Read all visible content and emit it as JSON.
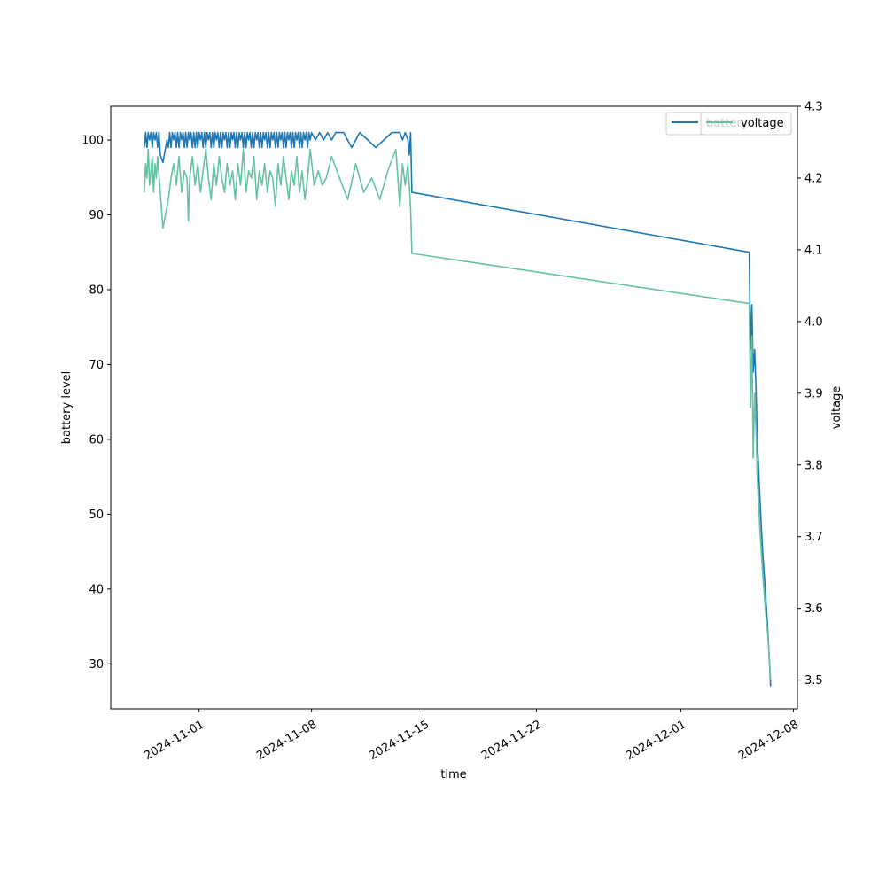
{
  "chart_data": {
    "type": "line",
    "title": "",
    "xlabel": "time",
    "ylabel": "battery level",
    "y2label": "voltage",
    "x_ticks": [
      "2024-11-01",
      "2024-11-08",
      "2024-11-15",
      "2024-11-22",
      "2024-12-01",
      "2024-12-08"
    ],
    "xlim": [
      "2024-10-26T12:00",
      "2024-12-08T06:00"
    ],
    "ylim": [
      24,
      104.5
    ],
    "y_ticks": [
      30,
      40,
      50,
      60,
      70,
      80,
      90,
      100
    ],
    "y2lim": [
      3.46,
      4.3
    ],
    "y2_ticks": [
      "3.5",
      "3.6",
      "3.7",
      "3.8",
      "3.9",
      "4.0",
      "4.1",
      "4.2",
      "4.3"
    ],
    "grid": false,
    "colors": {
      "battery": "#1f77b4",
      "voltage": "#66c2a5",
      "axis": "#000000",
      "legend_border": "#cccccc"
    },
    "legends": [
      {
        "labels": [
          "battery"
        ],
        "placement": "top-right"
      },
      {
        "labels": [
          "voltage"
        ],
        "placement": "top-right"
      }
    ],
    "series": [
      {
        "name": "battery",
        "axis": "left",
        "points": [
          [
            "2024-10-28T14:00",
            99
          ],
          [
            "2024-10-28T16:00",
            101
          ],
          [
            "2024-10-28T18:00",
            99
          ],
          [
            "2024-10-28T20:00",
            101
          ],
          [
            "2024-10-28T22:00",
            100
          ],
          [
            "2024-10-29T00:00",
            101
          ],
          [
            "2024-10-29T02:00",
            99
          ],
          [
            "2024-10-29T04:00",
            101
          ],
          [
            "2024-10-29T06:00",
            100
          ],
          [
            "2024-10-29T08:00",
            101
          ],
          [
            "2024-10-29T10:00",
            99
          ],
          [
            "2024-10-29T12:00",
            101
          ],
          [
            "2024-10-29T14:00",
            98
          ],
          [
            "2024-10-29T18:00",
            97
          ],
          [
            "2024-10-29T22:00",
            99
          ],
          [
            "2024-10-30T00:00",
            100
          ],
          [
            "2024-10-30T02:00",
            99
          ],
          [
            "2024-10-30T04:00",
            101
          ],
          [
            "2024-10-30T06:00",
            99
          ],
          [
            "2024-10-30T08:00",
            101
          ],
          [
            "2024-10-30T10:00",
            100
          ],
          [
            "2024-10-30T12:00",
            101
          ],
          [
            "2024-10-30T14:00",
            99
          ],
          [
            "2024-10-30T16:00",
            101
          ],
          [
            "2024-10-30T18:00",
            99
          ],
          [
            "2024-10-30T20:00",
            101
          ],
          [
            "2024-10-30T22:00",
            100
          ],
          [
            "2024-10-31T00:00",
            101
          ],
          [
            "2024-10-31T02:00",
            99
          ],
          [
            "2024-10-31T04:00",
            101
          ],
          [
            "2024-10-31T06:00",
            99
          ],
          [
            "2024-10-31T08:00",
            101
          ],
          [
            "2024-10-31T10:00",
            100
          ],
          [
            "2024-10-31T12:00",
            101
          ],
          [
            "2024-10-31T14:00",
            99
          ],
          [
            "2024-10-31T16:00",
            101
          ],
          [
            "2024-10-31T18:00",
            99
          ],
          [
            "2024-10-31T20:00",
            101
          ],
          [
            "2024-10-31T22:00",
            99
          ],
          [
            "2024-11-01T00:00",
            101
          ],
          [
            "2024-11-01T02:00",
            100
          ],
          [
            "2024-11-01T04:00",
            101
          ],
          [
            "2024-11-01T06:00",
            99
          ],
          [
            "2024-11-01T08:00",
            101
          ],
          [
            "2024-11-01T10:00",
            99
          ],
          [
            "2024-11-01T12:00",
            101
          ],
          [
            "2024-11-01T14:00",
            100
          ],
          [
            "2024-11-01T16:00",
            101
          ],
          [
            "2024-11-01T18:00",
            99
          ],
          [
            "2024-11-01T20:00",
            101
          ],
          [
            "2024-11-01T22:00",
            99
          ],
          [
            "2024-11-02T00:00",
            101
          ],
          [
            "2024-11-02T02:00",
            100
          ],
          [
            "2024-11-02T04:00",
            101
          ],
          [
            "2024-11-02T06:00",
            99
          ],
          [
            "2024-11-02T08:00",
            101
          ],
          [
            "2024-11-02T10:00",
            99
          ],
          [
            "2024-11-02T12:00",
            101
          ],
          [
            "2024-11-02T14:00",
            100
          ],
          [
            "2024-11-02T16:00",
            101
          ],
          [
            "2024-11-02T18:00",
            99
          ],
          [
            "2024-11-02T20:00",
            101
          ],
          [
            "2024-11-02T22:00",
            99
          ],
          [
            "2024-11-03T00:00",
            101
          ],
          [
            "2024-11-03T02:00",
            100
          ],
          [
            "2024-11-03T04:00",
            101
          ],
          [
            "2024-11-03T06:00",
            99
          ],
          [
            "2024-11-03T08:00",
            101
          ],
          [
            "2024-11-03T10:00",
            99
          ],
          [
            "2024-11-03T12:00",
            101
          ],
          [
            "2024-11-03T14:00",
            100
          ],
          [
            "2024-11-03T16:00",
            101
          ],
          [
            "2024-11-03T18:00",
            99
          ],
          [
            "2024-11-03T20:00",
            101
          ],
          [
            "2024-11-03T22:00",
            99
          ],
          [
            "2024-11-04T00:00",
            101
          ],
          [
            "2024-11-04T02:00",
            100
          ],
          [
            "2024-11-04T04:00",
            101
          ],
          [
            "2024-11-04T06:00",
            99
          ],
          [
            "2024-11-04T08:00",
            101
          ],
          [
            "2024-11-04T10:00",
            99
          ],
          [
            "2024-11-04T12:00",
            101
          ],
          [
            "2024-11-04T14:00",
            100
          ],
          [
            "2024-11-04T16:00",
            101
          ],
          [
            "2024-11-04T18:00",
            99
          ],
          [
            "2024-11-04T20:00",
            101
          ],
          [
            "2024-11-04T22:00",
            99
          ],
          [
            "2024-11-05T00:00",
            101
          ],
          [
            "2024-11-05T02:00",
            100
          ],
          [
            "2024-11-05T04:00",
            101
          ],
          [
            "2024-11-05T06:00",
            99
          ],
          [
            "2024-11-05T08:00",
            101
          ],
          [
            "2024-11-05T10:00",
            99
          ],
          [
            "2024-11-05T12:00",
            101
          ],
          [
            "2024-11-05T14:00",
            100
          ],
          [
            "2024-11-05T16:00",
            101
          ],
          [
            "2024-11-05T18:00",
            99
          ],
          [
            "2024-11-05T20:00",
            101
          ],
          [
            "2024-11-05T22:00",
            99
          ],
          [
            "2024-11-06T00:00",
            101
          ],
          [
            "2024-11-06T02:00",
            100
          ],
          [
            "2024-11-06T04:00",
            101
          ],
          [
            "2024-11-06T06:00",
            99
          ],
          [
            "2024-11-06T08:00",
            101
          ],
          [
            "2024-11-06T10:00",
            99
          ],
          [
            "2024-11-06T12:00",
            101
          ],
          [
            "2024-11-06T14:00",
            100
          ],
          [
            "2024-11-06T16:00",
            101
          ],
          [
            "2024-11-06T18:00",
            99
          ],
          [
            "2024-11-06T20:00",
            101
          ],
          [
            "2024-11-06T22:00",
            99
          ],
          [
            "2024-11-07T00:00",
            101
          ],
          [
            "2024-11-07T02:00",
            100
          ],
          [
            "2024-11-07T04:00",
            101
          ],
          [
            "2024-11-07T06:00",
            99
          ],
          [
            "2024-11-07T08:00",
            101
          ],
          [
            "2024-11-07T10:00",
            99
          ],
          [
            "2024-11-07T12:00",
            101
          ],
          [
            "2024-11-07T14:00",
            100
          ],
          [
            "2024-11-07T16:00",
            101
          ],
          [
            "2024-11-07T18:00",
            99
          ],
          [
            "2024-11-07T20:00",
            101
          ],
          [
            "2024-11-07T22:00",
            100
          ],
          [
            "2024-11-08T00:00",
            101
          ],
          [
            "2024-11-08T06:00",
            100
          ],
          [
            "2024-11-08T12:00",
            101
          ],
          [
            "2024-11-08T18:00",
            100
          ],
          [
            "2024-11-09T00:00",
            101
          ],
          [
            "2024-11-09T06:00",
            100
          ],
          [
            "2024-11-09T12:00",
            101
          ],
          [
            "2024-11-10T00:00",
            101
          ],
          [
            "2024-11-10T12:00",
            99
          ],
          [
            "2024-11-11T00:00",
            101
          ],
          [
            "2024-11-11T12:00",
            100
          ],
          [
            "2024-11-12T00:00",
            99
          ],
          [
            "2024-11-12T12:00",
            100
          ],
          [
            "2024-11-13T00:00",
            101
          ],
          [
            "2024-11-13T12:00",
            101
          ],
          [
            "2024-11-13T16:00",
            100
          ],
          [
            "2024-11-13T20:00",
            101
          ],
          [
            "2024-11-14T00:00",
            100
          ],
          [
            "2024-11-14T02:00",
            98
          ],
          [
            "2024-11-14T04:00",
            101
          ],
          [
            "2024-11-14T06:00",
            93
          ],
          [
            "2024-12-05T06:00",
            85
          ],
          [
            "2024-12-05T08:00",
            72
          ],
          [
            "2024-12-05T10:00",
            78
          ],
          [
            "2024-12-05T12:00",
            69
          ],
          [
            "2024-12-05T14:00",
            72
          ],
          [
            "2024-12-05T16:00",
            67
          ],
          [
            "2024-12-05T18:00",
            60
          ],
          [
            "2024-12-05T22:00",
            52
          ],
          [
            "2024-12-06T02:00",
            45
          ],
          [
            "2024-12-06T06:00",
            40
          ],
          [
            "2024-12-06T10:00",
            34
          ],
          [
            "2024-12-06T14:00",
            27
          ]
        ]
      },
      {
        "name": "voltage",
        "axis": "right",
        "points": [
          [
            "2024-10-28T14:00",
            4.18
          ],
          [
            "2024-10-28T16:00",
            4.22
          ],
          [
            "2024-10-28T18:00",
            4.2
          ],
          [
            "2024-10-28T20:00",
            4.24
          ],
          [
            "2024-10-28T22:00",
            4.19
          ],
          [
            "2024-10-29T00:00",
            4.21
          ],
          [
            "2024-10-29T02:00",
            4.23
          ],
          [
            "2024-10-29T04:00",
            4.18
          ],
          [
            "2024-10-29T06:00",
            4.22
          ],
          [
            "2024-10-29T08:00",
            4.2
          ],
          [
            "2024-10-29T10:00",
            4.23
          ],
          [
            "2024-10-29T14:00",
            4.18
          ],
          [
            "2024-10-29T18:00",
            4.13
          ],
          [
            "2024-10-29T22:00",
            4.15
          ],
          [
            "2024-10-30T02:00",
            4.17
          ],
          [
            "2024-10-30T06:00",
            4.2
          ],
          [
            "2024-10-30T10:00",
            4.22
          ],
          [
            "2024-10-30T14:00",
            4.19
          ],
          [
            "2024-10-30T18:00",
            4.23
          ],
          [
            "2024-10-30T22:00",
            4.18
          ],
          [
            "2024-10-31T02:00",
            4.21
          ],
          [
            "2024-10-31T06:00",
            4.2
          ],
          [
            "2024-10-31T08:00",
            4.14
          ],
          [
            "2024-10-31T10:00",
            4.2
          ],
          [
            "2024-10-31T14:00",
            4.23
          ],
          [
            "2024-10-31T18:00",
            4.19
          ],
          [
            "2024-10-31T22:00",
            4.22
          ],
          [
            "2024-11-01T02:00",
            4.18
          ],
          [
            "2024-11-01T06:00",
            4.21
          ],
          [
            "2024-11-01T10:00",
            4.24
          ],
          [
            "2024-11-01T14:00",
            4.2
          ],
          [
            "2024-11-01T18:00",
            4.17
          ],
          [
            "2024-11-01T22:00",
            4.22
          ],
          [
            "2024-11-02T02:00",
            4.19
          ],
          [
            "2024-11-02T06:00",
            4.23
          ],
          [
            "2024-11-02T10:00",
            4.2
          ],
          [
            "2024-11-02T14:00",
            4.18
          ],
          [
            "2024-11-02T18:00",
            4.22
          ],
          [
            "2024-11-02T22:00",
            4.19
          ],
          [
            "2024-11-03T02:00",
            4.21
          ],
          [
            "2024-11-03T06:00",
            4.17
          ],
          [
            "2024-11-03T10:00",
            4.22
          ],
          [
            "2024-11-03T14:00",
            4.19
          ],
          [
            "2024-11-03T18:00",
            4.24
          ],
          [
            "2024-11-03T22:00",
            4.18
          ],
          [
            "2024-11-04T02:00",
            4.21
          ],
          [
            "2024-11-04T06:00",
            4.2
          ],
          [
            "2024-11-04T10:00",
            4.23
          ],
          [
            "2024-11-04T14:00",
            4.17
          ],
          [
            "2024-11-04T18:00",
            4.21
          ],
          [
            "2024-11-04T22:00",
            4.19
          ],
          [
            "2024-11-05T02:00",
            4.22
          ],
          [
            "2024-11-05T06:00",
            4.18
          ],
          [
            "2024-11-05T10:00",
            4.21
          ],
          [
            "2024-11-05T14:00",
            4.2
          ],
          [
            "2024-11-05T18:00",
            4.16
          ],
          [
            "2024-11-05T22:00",
            4.22
          ],
          [
            "2024-11-06T02:00",
            4.19
          ],
          [
            "2024-11-06T06:00",
            4.23
          ],
          [
            "2024-11-06T10:00",
            4.2
          ],
          [
            "2024-11-06T14:00",
            4.17
          ],
          [
            "2024-11-06T18:00",
            4.21
          ],
          [
            "2024-11-06T22:00",
            4.19
          ],
          [
            "2024-11-07T02:00",
            4.23
          ],
          [
            "2024-11-07T06:00",
            4.18
          ],
          [
            "2024-11-07T10:00",
            4.21
          ],
          [
            "2024-11-07T14:00",
            4.17
          ],
          [
            "2024-11-07T18:00",
            4.2
          ],
          [
            "2024-11-07T22:00",
            4.24
          ],
          [
            "2024-11-08T04:00",
            4.19
          ],
          [
            "2024-11-08T10:00",
            4.21
          ],
          [
            "2024-11-08T16:00",
            4.19
          ],
          [
            "2024-11-08T22:00",
            4.2
          ],
          [
            "2024-11-09T06:00",
            4.23
          ],
          [
            "2024-11-09T18:00",
            4.2
          ],
          [
            "2024-11-10T06:00",
            4.17
          ],
          [
            "2024-11-10T18:00",
            4.22
          ],
          [
            "2024-11-11T06:00",
            4.18
          ],
          [
            "2024-11-11T18:00",
            4.2
          ],
          [
            "2024-11-12T06:00",
            4.17
          ],
          [
            "2024-11-12T18:00",
            4.21
          ],
          [
            "2024-11-13T06:00",
            4.24
          ],
          [
            "2024-11-13T12:00",
            4.16
          ],
          [
            "2024-11-13T16:00",
            4.22
          ],
          [
            "2024-11-13T20:00",
            4.19
          ],
          [
            "2024-11-14T00:00",
            4.22
          ],
          [
            "2024-11-14T04:00",
            4.16
          ],
          [
            "2024-11-14T06:00",
            4.095
          ],
          [
            "2024-12-05T06:00",
            4.025
          ],
          [
            "2024-12-05T08:00",
            3.88
          ],
          [
            "2024-12-05T10:00",
            3.98
          ],
          [
            "2024-12-05T12:00",
            3.81
          ],
          [
            "2024-12-05T14:00",
            3.9
          ],
          [
            "2024-12-05T16:00",
            3.85
          ],
          [
            "2024-12-05T18:00",
            3.78
          ],
          [
            "2024-12-05T22:00",
            3.71
          ],
          [
            "2024-12-06T02:00",
            3.65
          ],
          [
            "2024-12-06T06:00",
            3.6
          ],
          [
            "2024-12-06T10:00",
            3.56
          ],
          [
            "2024-12-06T14:00",
            3.5
          ]
        ]
      }
    ]
  }
}
